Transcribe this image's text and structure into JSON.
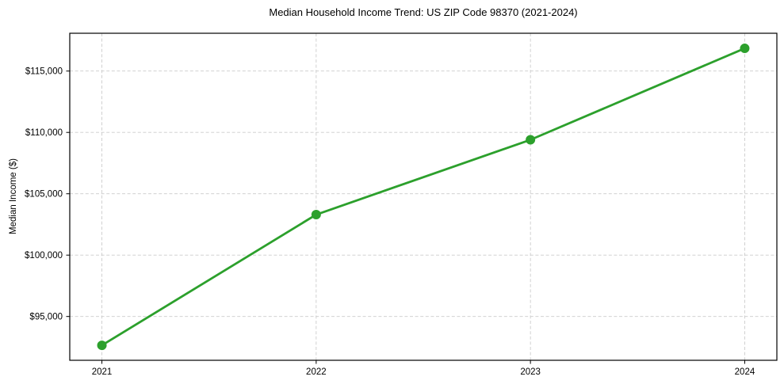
{
  "chart_data": {
    "type": "line",
    "title": "Median Household Income Trend: US ZIP Code 98370 (2021-2024)",
    "xlabel": "",
    "ylabel": "Median Income ($)",
    "x": [
      2021,
      2022,
      2023,
      2024
    ],
    "series": [
      {
        "name": "Median Household Income",
        "values": [
          92650,
          103300,
          109400,
          116850
        ]
      }
    ],
    "x_tick_labels": [
      "2021",
      "2022",
      "2023",
      "2024"
    ],
    "y_ticks": [
      95000,
      100000,
      105000,
      110000,
      115000
    ],
    "y_tick_labels": [
      "$95,000",
      "$100,000",
      "$105,000",
      "$110,000",
      "$115,000"
    ],
    "xlim": [
      2020.85,
      2024.15
    ],
    "ylim": [
      91430,
      118080
    ],
    "grid": true,
    "grid_style": "dashed",
    "legend_position": "none",
    "colors": {
      "line": "#2ca02c",
      "marker": "#2ca02c",
      "grid": "#cccccc",
      "axis": "#000000",
      "background": "#ffffff"
    }
  }
}
